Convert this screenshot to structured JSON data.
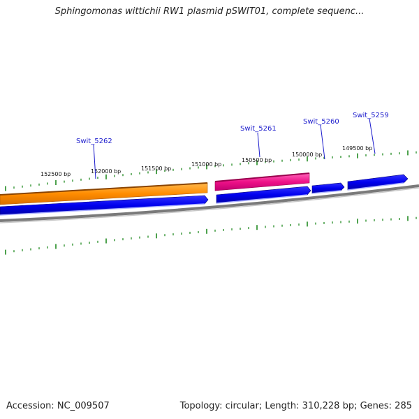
{
  "title": "Sphingomonas wittichii RW1 plasmid pSWIT01, complete sequenc...",
  "footer": {
    "accession": "Accession: NC_009507",
    "summary": "Topology: circular; Length: 310,228 bp; Genes: 285"
  },
  "ruler_labels": [
    "152500 bp",
    "152000 bp",
    "151500 bp",
    "151000 bp",
    "150500 bp",
    "150000 bp",
    "149500 bp"
  ],
  "genes": [
    {
      "name": "Swit_5262",
      "color": "#ff8c00"
    },
    {
      "name": "Swit_5261",
      "color": "#ee1188"
    },
    {
      "name": "Swit_5260",
      "color": "#0000ee"
    },
    {
      "name": "Swit_5259",
      "color": "#0000ee"
    }
  ],
  "colors": {
    "backbone": "#808080",
    "tick": "#228b22",
    "gene_label": "#1a1acc",
    "cds": "#0000ee"
  }
}
